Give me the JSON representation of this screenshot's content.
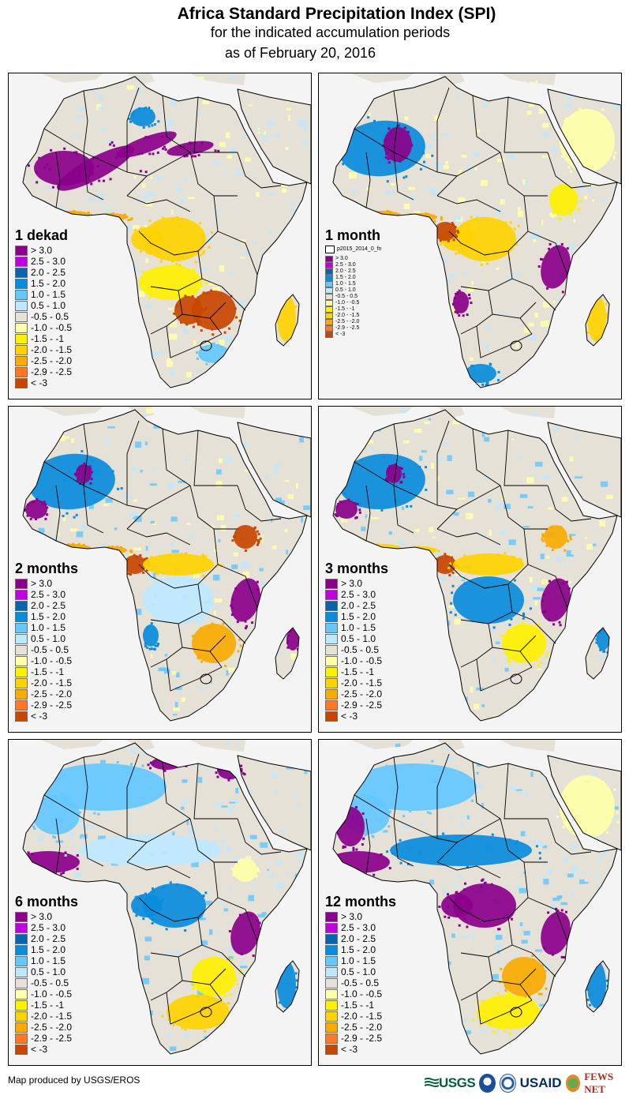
{
  "header": {
    "title": "Africa Standard Precipitation Index (SPI)",
    "subtitle": "for the indicated accumulation periods",
    "date_line": "as of February 20, 2016"
  },
  "legend_classes": [
    {
      "label": "> 3.0",
      "color": "#8B008B"
    },
    {
      "label": "2.5 - 3.0",
      "color": "#C000DC"
    },
    {
      "label": "2.0 - 2.5",
      "color": "#0A64AC"
    },
    {
      "label": "1.5 - 2.0",
      "color": "#0A8CDC"
    },
    {
      "label": "1.0 - 1.5",
      "color": "#64C8FF"
    },
    {
      "label": "0.5 - 1.0",
      "color": "#BEE8FF"
    },
    {
      "label": "-0.5 - 0.5",
      "color": "#E6E1D6"
    },
    {
      "label": "-1.0 - -0.5",
      "color": "#FFFFAA"
    },
    {
      "label": "-1.5 - -1",
      "color": "#FFF000"
    },
    {
      "label": "-2.0 - -1.5",
      "color": "#FFD200"
    },
    {
      "label": "-2.5 - -2.0",
      "color": "#FAAA00"
    },
    {
      "label": "-2.9 - -2.5",
      "color": "#FF7828"
    },
    {
      "label": "< -3",
      "color": "#C84600"
    }
  ],
  "panels": [
    {
      "id": "1-dekad",
      "title": "1 dekad",
      "extra_legend_item": null,
      "dominant_patterns": [
        {
          "region": "sahara-central-diagonal",
          "class": "> 3.0"
        },
        {
          "region": "mauritania-mali",
          "class": "> 3.0"
        },
        {
          "region": "algeria-east",
          "class": "1.5 - 2.0"
        },
        {
          "region": "gulf-of-guinea-coast",
          "class": "-2.5 - -2.0"
        },
        {
          "region": "central-africa",
          "class": "-2.0 - -1.5"
        },
        {
          "region": "angola-zambia",
          "class": "-1.5 - -1"
        },
        {
          "region": "zimbabwe-mozambique",
          "class": "< -3"
        },
        {
          "region": "botswana",
          "class": "< -3"
        },
        {
          "region": "madagascar",
          "class": "-2.0 - -1.5"
        },
        {
          "region": "south-africa-east",
          "class": "1.0 - 1.5"
        }
      ]
    },
    {
      "id": "1-month",
      "title": "1 month",
      "extra_legend_item": "p2015_2014_0_fn",
      "dominant_patterns": [
        {
          "region": "mali-mauritania",
          "class": "1.5 - 2.0"
        },
        {
          "region": "mali-central",
          "class": "> 3.0"
        },
        {
          "region": "gulf-of-guinea-coast",
          "class": "-2.5 - -2.0"
        },
        {
          "region": "central-africa",
          "class": "-2.0 - -1.5"
        },
        {
          "region": "cameroon-gabon",
          "class": "< -3"
        },
        {
          "region": "tanzania-malawi",
          "class": "> 3.0"
        },
        {
          "region": "horn-ethiopia",
          "class": "-1.5 - -1"
        },
        {
          "region": "arabia",
          "class": "-1.0 - -0.5"
        },
        {
          "region": "southern-africa",
          "class": "-2.0 - -1.5"
        },
        {
          "region": "namibia-coast",
          "class": "> 3.0"
        },
        {
          "region": "south-africa-southwest",
          "class": "1.5 - 2.0"
        },
        {
          "region": "madagascar",
          "class": "-2.0 - -1.5"
        }
      ]
    },
    {
      "id": "2-months",
      "title": "2 months",
      "extra_legend_item": null,
      "dominant_patterns": [
        {
          "region": "mali-mauritania",
          "class": "1.5 - 2.0"
        },
        {
          "region": "senegal-mali",
          "class": "> 3.0"
        },
        {
          "region": "gulf-of-guinea-coast",
          "class": "-2.5 - -2.0"
        },
        {
          "region": "cameroon-gabon",
          "class": "< -3"
        },
        {
          "region": "central-africa-north",
          "class": "-2.0 - -1.5"
        },
        {
          "region": "drc-angola",
          "class": "0.5 - 1.0"
        },
        {
          "region": "tanzania-malawi",
          "class": "> 3.0"
        },
        {
          "region": "zimbabwe-mozambique",
          "class": "-2.5 - -2.0"
        },
        {
          "region": "ethiopia",
          "class": "< -3"
        },
        {
          "region": "namibia-coast",
          "class": "1.5 - 2.0"
        },
        {
          "region": "madagascar-north",
          "class": "> 3.0"
        }
      ]
    },
    {
      "id": "3-months",
      "title": "3 months",
      "extra_legend_item": null,
      "dominant_patterns": [
        {
          "region": "mali-mauritania",
          "class": "1.5 - 2.0"
        },
        {
          "region": "senegal-mali",
          "class": "> 3.0"
        },
        {
          "region": "gulf-of-guinea-coast",
          "class": "-2.0 - -1.5"
        },
        {
          "region": "cameroon-gabon",
          "class": "< -3"
        },
        {
          "region": "central-africa-north",
          "class": "-2.0 - -1.5"
        },
        {
          "region": "drc-angola",
          "class": "1.5 - 2.0"
        },
        {
          "region": "tanzania-malawi",
          "class": "> 3.0"
        },
        {
          "region": "zimbabwe-mozambique",
          "class": "-1.5 - -1"
        },
        {
          "region": "ethiopia",
          "class": "-2.5 - -2.0"
        },
        {
          "region": "madagascar-north",
          "class": "1.5 - 2.0"
        }
      ]
    },
    {
      "id": "6-months",
      "title": "6 months",
      "extra_legend_item": null,
      "dominant_patterns": [
        {
          "region": "sahara-north",
          "class": "1.0 - 1.5"
        },
        {
          "region": "libya-egypt-coast",
          "class": "> 3.0"
        },
        {
          "region": "west-africa-coast",
          "class": "> 3.0"
        },
        {
          "region": "sahel",
          "class": "0.5 - 1.0"
        },
        {
          "region": "central-africa",
          "class": "1.5 - 2.0"
        },
        {
          "region": "tanzania-malawi",
          "class": "> 3.0"
        },
        {
          "region": "zimbabwe-mozambique",
          "class": "-1.5 - -1"
        },
        {
          "region": "south-africa",
          "class": "-2.0 - -1.5"
        },
        {
          "region": "ethiopia",
          "class": "-1.0 - -0.5"
        },
        {
          "region": "madagascar",
          "class": "1.5 - 2.0"
        }
      ]
    },
    {
      "id": "12-months",
      "title": "12 months",
      "extra_legend_item": null,
      "dominant_patterns": [
        {
          "region": "sahara-north",
          "class": "1.0 - 1.5"
        },
        {
          "region": "west-africa-coast",
          "class": "> 3.0"
        },
        {
          "region": "mauritania-west",
          "class": "> 3.0"
        },
        {
          "region": "central-africa",
          "class": "> 3.0"
        },
        {
          "region": "sahel",
          "class": "1.5 - 2.0"
        },
        {
          "region": "tanzania-malawi",
          "class": "> 3.0"
        },
        {
          "region": "zimbabwe-mozambique",
          "class": "-2.5 - -2.0"
        },
        {
          "region": "south-africa",
          "class": "-1.5 - -1"
        },
        {
          "region": "arabia",
          "class": "-1.0 - -0.5"
        },
        {
          "region": "madagascar",
          "class": "1.5 - 2.0"
        }
      ]
    }
  ],
  "footer": {
    "credit": "Map produced by USGS/EROS",
    "logos": [
      {
        "name": "USGS",
        "tagline": "science for a changing world"
      },
      {
        "name": "NOAA"
      },
      {
        "name": "USAID seal"
      },
      {
        "name": "USAID",
        "tagline": "FROM THE AMERICAN PEOPLE"
      },
      {
        "name": "FEWS NET",
        "tagline": "FAMINE EARLY WARNING SYSTEMS NETWORK"
      }
    ]
  }
}
